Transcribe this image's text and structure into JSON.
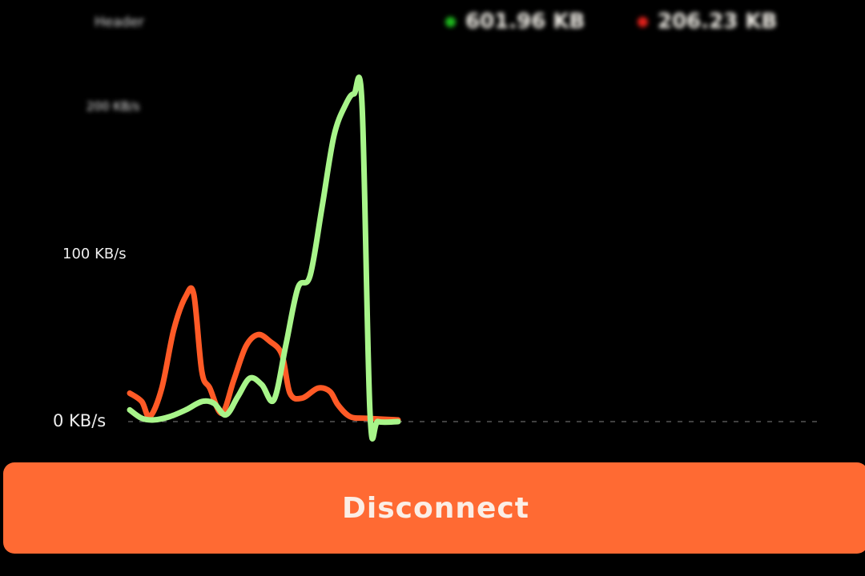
{
  "header": {
    "title": "Header"
  },
  "legend": {
    "download": {
      "value": "601.96 KB",
      "color": "#1db81d"
    },
    "upload": {
      "value": "206.23 KB",
      "color": "#e0201a"
    }
  },
  "chart_data": {
    "type": "line",
    "ylim": [
      0,
      200
    ],
    "y_ticks": [
      "0 KB/s",
      "100 KB/s",
      "200 KB/s"
    ],
    "grid": "dashed baseline only",
    "series": [
      {
        "color": "#a8f58a",
        "x": [
          0,
          3,
          6,
          10,
          14,
          18,
          21,
          24,
          27,
          30,
          33,
          36,
          39,
          42,
          45,
          48,
          51,
          54,
          56,
          58,
          60,
          62,
          67
        ],
        "values": [
          7,
          2,
          1,
          3,
          7,
          12,
          11,
          4,
          15,
          26,
          22,
          13,
          46,
          80,
          87,
          128,
          171,
          190,
          196,
          190,
          5,
          0,
          0
        ]
      },
      {
        "color": "#ff5a26",
        "x": [
          0,
          3,
          5,
          8,
          11,
          14,
          16,
          18,
          20,
          23,
          26,
          29,
          32,
          35,
          38,
          40,
          43,
          47,
          50,
          52,
          55,
          59,
          67
        ],
        "values": [
          17,
          12,
          3,
          20,
          55,
          75,
          76,
          30,
          20,
          5,
          25,
          45,
          52,
          48,
          40,
          17,
          14,
          20,
          18,
          10,
          3,
          2,
          1
        ]
      }
    ]
  },
  "button": {
    "label": "Disconnect",
    "color": "#ff6a33"
  }
}
